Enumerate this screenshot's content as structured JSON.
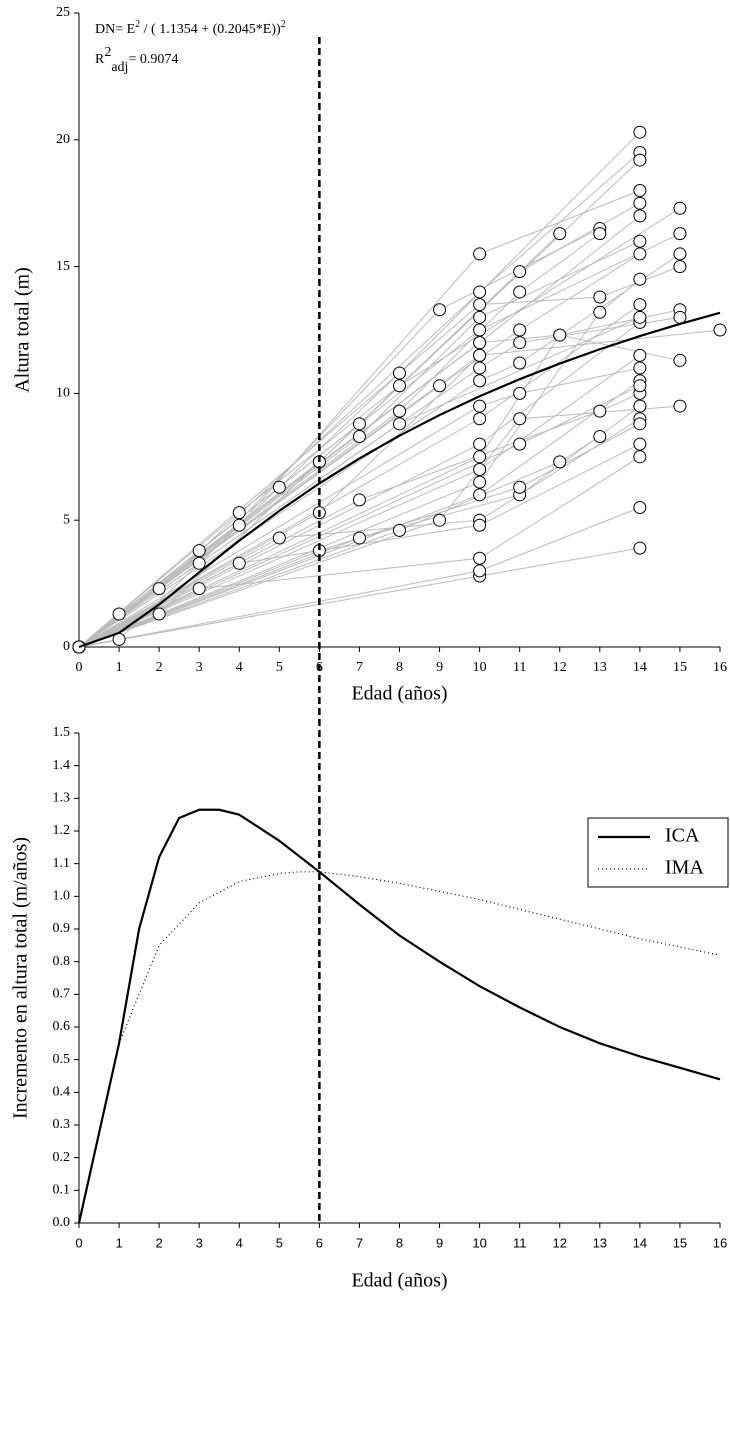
{
  "chart_data": [
    {
      "type": "scatter",
      "x_label": "Edad (años)",
      "y_label": "Altura total (m)",
      "equation": [
        "DN= E",
        "2",
        " / ( 1.1354 + (0.2045*E))",
        "2"
      ],
      "r2": [
        "R",
        "2",
        "adj",
        "= 0.9074"
      ],
      "xlim": [
        0,
        16
      ],
      "ylim": [
        0,
        25
      ],
      "xticks": [
        0,
        1,
        2,
        3,
        4,
        5,
        6,
        7,
        8,
        9,
        10,
        11,
        12,
        13,
        14,
        15,
        16
      ],
      "yticks": [
        0,
        5,
        10,
        15,
        20,
        25
      ],
      "vline_x": 6,
      "trajectories": [
        {
          "x": [
            0,
            1,
            10,
            14
          ],
          "y": [
            0,
            1.3,
            12,
            17
          ]
        },
        {
          "x": [
            0,
            1,
            8,
            14
          ],
          "y": [
            0,
            0.3,
            10.8,
            20.3
          ]
        },
        {
          "x": [
            0,
            2,
            10,
            14
          ],
          "y": [
            0,
            2.3,
            14,
            19.5
          ]
        },
        {
          "x": [
            0,
            2,
            6,
            14
          ],
          "y": [
            0,
            1.3,
            7.3,
            19.2
          ]
        },
        {
          "x": [
            0,
            3,
            7,
            12
          ],
          "y": [
            0,
            3.8,
            8.8,
            16.3
          ]
        },
        {
          "x": [
            0,
            3,
            9,
            13
          ],
          "y": [
            0,
            3.3,
            13.3,
            16.5
          ]
        },
        {
          "x": [
            0,
            4,
            8,
            15
          ],
          "y": [
            0,
            5.3,
            10.3,
            17.3
          ]
        },
        {
          "x": [
            0,
            4,
            10,
            14
          ],
          "y": [
            0,
            4.8,
            15.5,
            18
          ]
        },
        {
          "x": [
            0,
            5,
            10,
            15
          ],
          "y": [
            0,
            6.3,
            12.5,
            16.3
          ]
        },
        {
          "x": [
            0,
            6,
            11,
            14
          ],
          "y": [
            0,
            7.3,
            14.8,
            17.5
          ]
        },
        {
          "x": [
            0,
            6,
            10
          ],
          "y": [
            0,
            5.3,
            11.5
          ]
        },
        {
          "x": [
            0,
            7,
            10,
            14
          ],
          "y": [
            0,
            8.3,
            13,
            16
          ]
        },
        {
          "x": [
            0,
            8,
            11,
            13
          ],
          "y": [
            0,
            9.3,
            14,
            16.3
          ]
        },
        {
          "x": [
            0,
            9,
            11,
            14
          ],
          "y": [
            0,
            10.3,
            12.5,
            15.5
          ]
        },
        {
          "x": [
            0,
            10,
            14
          ],
          "y": [
            0,
            9,
            13.5
          ]
        },
        {
          "x": [
            0,
            10,
            11,
            15
          ],
          "y": [
            0,
            10.5,
            11.2,
            15.5
          ]
        },
        {
          "x": [
            0,
            10,
            14
          ],
          "y": [
            0,
            8,
            12.8
          ]
        },
        {
          "x": [
            0,
            10,
            12,
            15
          ],
          "y": [
            0,
            7.5,
            12.3,
            13.3
          ]
        },
        {
          "x": [
            0,
            10,
            14
          ],
          "y": [
            0,
            7,
            11.5
          ]
        },
        {
          "x": [
            0,
            10,
            13,
            14
          ],
          "y": [
            0,
            6.5,
            13.2,
            14.5
          ]
        },
        {
          "x": [
            0,
            10,
            14
          ],
          "y": [
            0,
            6,
            10.5
          ]
        },
        {
          "x": [
            0,
            5,
            10,
            14
          ],
          "y": [
            0,
            4.3,
            5,
            9
          ]
        },
        {
          "x": [
            0,
            4,
            10,
            14
          ],
          "y": [
            0,
            3.3,
            4.8,
            8
          ]
        },
        {
          "x": [
            0,
            3,
            10,
            14
          ],
          "y": [
            0,
            2.3,
            3.5,
            7.5
          ]
        },
        {
          "x": [
            0,
            10,
            14
          ],
          "y": [
            0,
            2.8,
            3.9
          ]
        },
        {
          "x": [
            0,
            10,
            14
          ],
          "y": [
            0,
            3,
            5.5
          ]
        },
        {
          "x": [
            0,
            7,
            11,
            14
          ],
          "y": [
            0,
            4.3,
            6,
            9.5
          ]
        },
        {
          "x": [
            0,
            8,
            12,
            13
          ],
          "y": [
            0,
            4.6,
            7.3,
            8.3
          ]
        },
        {
          "x": [
            0,
            9,
            11,
            15
          ],
          "y": [
            0,
            5,
            9,
            9.5
          ]
        },
        {
          "x": [
            0,
            6,
            11,
            14
          ],
          "y": [
            0,
            3.8,
            6.3,
            8.8
          ]
        },
        {
          "x": [
            0,
            10,
            11,
            14
          ],
          "y": [
            0,
            9.5,
            10,
            11
          ]
        },
        {
          "x": [
            0,
            10,
            11,
            15
          ],
          "y": [
            0,
            11,
            12,
            13
          ]
        },
        {
          "x": [
            0,
            10,
            12,
            15
          ],
          "y": [
            0,
            12,
            12.3,
            11.3
          ]
        },
        {
          "x": [
            0,
            10,
            13,
            15
          ],
          "y": [
            0,
            13.5,
            13.8,
            15
          ]
        },
        {
          "x": [
            0,
            8,
            14
          ],
          "y": [
            0,
            8.8,
            13
          ]
        },
        {
          "x": [
            0,
            7,
            13,
            14
          ],
          "y": [
            0,
            5.8,
            9.3,
            10
          ]
        },
        {
          "x": [
            0,
            11,
            14
          ],
          "y": [
            0,
            8,
            10.3
          ]
        },
        {
          "x": [
            0,
            10,
            16
          ],
          "y": [
            0,
            11.5,
            12.5
          ]
        }
      ],
      "fit": {
        "x": [
          0,
          1,
          2,
          3,
          4,
          5,
          6,
          7,
          8,
          9,
          10,
          11,
          12,
          13,
          14,
          15,
          16
        ],
        "y": [
          0,
          0.557,
          1.677,
          2.942,
          4.193,
          5.369,
          6.451,
          7.437,
          8.333,
          9.146,
          9.886,
          10.561,
          11.177,
          11.741,
          12.26,
          12.737,
          13.179
        ]
      }
    },
    {
      "type": "line",
      "x_label": "Edad (años)",
      "y_label": "Incremento en altura total  (m/años)",
      "xlim": [
        0,
        16
      ],
      "ylim": [
        0,
        1.5
      ],
      "xticks": [
        0,
        1,
        2,
        3,
        4,
        5,
        6,
        7,
        8,
        9,
        10,
        11,
        12,
        13,
        14,
        15,
        16
      ],
      "yticks": [
        {
          "value": 0,
          "label": "0.0"
        },
        0.1,
        0.2,
        0.3,
        0.4,
        0.5,
        0.6,
        0.7,
        0.8,
        0.9,
        {
          "value": 1,
          "label": "1.0"
        },
        1.1,
        1.2,
        1.3,
        1.4,
        1.5
      ],
      "legend": "upper right",
      "series": [
        {
          "name": "ICA",
          "color": "#000000",
          "style": "solid",
          "x": [
            0,
            1,
            1.5,
            2,
            2.5,
            3,
            3.5,
            4,
            5,
            6,
            7,
            8,
            9,
            10,
            11,
            12,
            13,
            14,
            15,
            16
          ],
          "values": [
            0,
            0.55,
            0.9,
            1.12,
            1.24,
            1.265,
            1.265,
            1.25,
            1.17,
            1.075,
            0.975,
            0.88,
            0.8,
            0.725,
            0.66,
            0.6,
            0.55,
            0.51,
            0.475,
            0.44
          ]
        },
        {
          "name": "IMA",
          "color": "#000000",
          "style": "dotted",
          "x": [
            0,
            1,
            2,
            3,
            4,
            5,
            5.5,
            6,
            7,
            8,
            9,
            10,
            11,
            12,
            13,
            14,
            15,
            16
          ],
          "values": [
            0,
            0.55,
            0.85,
            0.98,
            1.045,
            1.07,
            1.075,
            1.075,
            1.06,
            1.04,
            1.015,
            0.99,
            0.96,
            0.93,
            0.9,
            0.87,
            0.845,
            0.82
          ]
        }
      ]
    }
  ]
}
